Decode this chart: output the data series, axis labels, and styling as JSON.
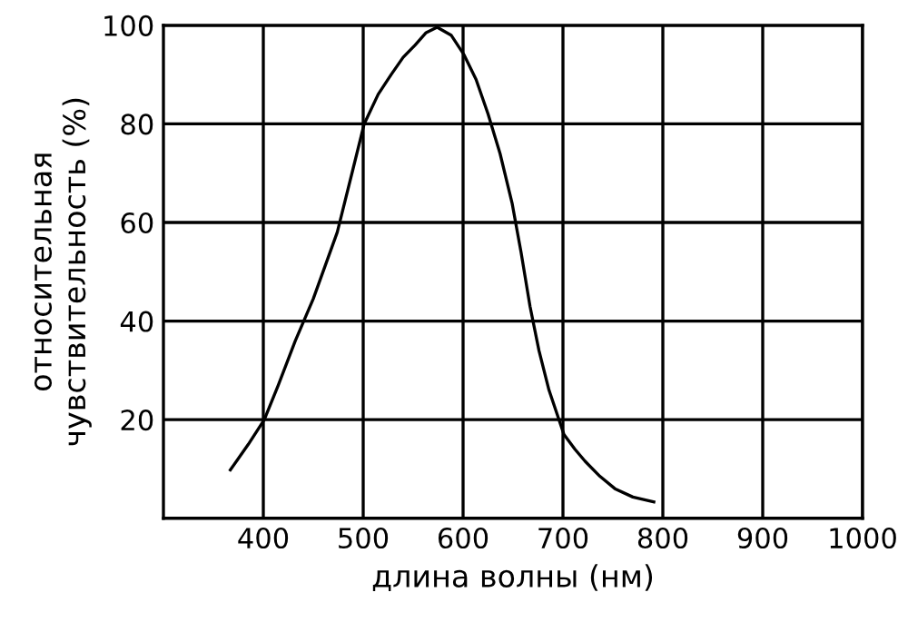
{
  "chart_data": {
    "type": "line",
    "xlabel": "длина волны (нм)",
    "ylabel": "относительная\nчувствительность (%)",
    "series": [
      {
        "color": "#000000",
        "x": [
          367,
          385,
          401,
          415,
          432,
          450,
          474,
          490,
          501,
          515,
          528,
          540,
          552,
          563,
          574,
          588,
          601,
          613,
          625,
          637,
          649,
          658,
          667,
          676,
          686,
          701,
          712,
          722,
          737,
          752,
          770,
          791
        ],
        "values": [
          9.8,
          15,
          20,
          27,
          36,
          44.5,
          58,
          71,
          80,
          86,
          90,
          93.5,
          96,
          98.5,
          99.6,
          98,
          94,
          89,
          82,
          74,
          64,
          54,
          43,
          34,
          26,
          17,
          14,
          11.6,
          8.5,
          6,
          4.3,
          3.3
        ]
      }
    ],
    "xlim": [
      300,
      1000
    ],
    "ylim": [
      0,
      100
    ],
    "xticks": [
      400,
      500,
      600,
      700,
      800,
      900,
      1000
    ],
    "yticks": [
      20,
      40,
      60,
      80,
      100
    ],
    "grid": true,
    "marker": "none",
    "line_style": "solid"
  }
}
